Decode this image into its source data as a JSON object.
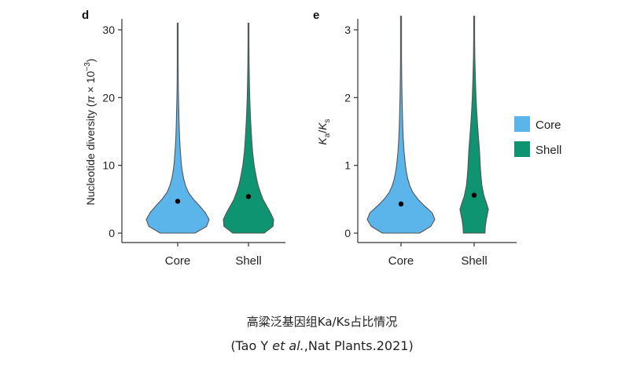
{
  "chart_data": [
    {
      "type": "violin",
      "panel_label": "d",
      "categories": [
        "Core",
        "Shell"
      ],
      "ylabel_main": "Nucleotide diversity (",
      "ylabel_pi": "π",
      "ylabel_times": " × 10",
      "ylabel_exp": "−3",
      "ylabel_close": ")",
      "ylim": [
        0,
        32
      ],
      "yticks": [
        0,
        10,
        20,
        30
      ],
      "series": [
        {
          "category": "Core",
          "color": "#5bb4ea",
          "mean": 4.7,
          "max": 31,
          "density": [
            [
              0,
              0.55
            ],
            [
              1,
              0.92
            ],
            [
              2,
              1.0
            ],
            [
              3,
              0.88
            ],
            [
              4,
              0.7
            ],
            [
              5,
              0.5
            ],
            [
              6,
              0.34
            ],
            [
              7,
              0.25
            ],
            [
              8,
              0.19
            ],
            [
              9,
              0.15
            ],
            [
              10,
              0.12
            ],
            [
              12,
              0.085
            ],
            [
              14,
              0.06
            ],
            [
              16,
              0.045
            ],
            [
              18,
              0.035
            ],
            [
              20,
              0.025
            ],
            [
              22,
              0.018
            ],
            [
              25,
              0.013
            ],
            [
              28,
              0.01
            ],
            [
              31,
              0.005
            ]
          ]
        },
        {
          "category": "Shell",
          "color": "#0e9470",
          "mean": 5.4,
          "max": 31,
          "density": [
            [
              0,
              0.5
            ],
            [
              1,
              0.78
            ],
            [
              2,
              0.8
            ],
            [
              3,
              0.7
            ],
            [
              4,
              0.58
            ],
            [
              5,
              0.46
            ],
            [
              6,
              0.38
            ],
            [
              7,
              0.31
            ],
            [
              8,
              0.26
            ],
            [
              9,
              0.22
            ],
            [
              10,
              0.18
            ],
            [
              12,
              0.13
            ],
            [
              14,
              0.1
            ],
            [
              16,
              0.075
            ],
            [
              18,
              0.055
            ],
            [
              20,
              0.04
            ],
            [
              22,
              0.03
            ],
            [
              25,
              0.02
            ],
            [
              28,
              0.012
            ],
            [
              31,
              0.005
            ]
          ]
        }
      ]
    },
    {
      "type": "violin",
      "panel_label": "e",
      "categories": [
        "Core",
        "Shell"
      ],
      "ylabel_k1": "K",
      "ylabel_sub1": "a",
      "ylabel_slash": "/",
      "ylabel_k2": "K",
      "ylabel_sub2": "s",
      "ylim": [
        0,
        3.2
      ],
      "yticks": [
        0,
        1,
        2,
        3
      ],
      "series": [
        {
          "category": "Core",
          "color": "#5bb4ea",
          "mean": 0.43,
          "max": 3.2,
          "density": [
            [
              0,
              0.55
            ],
            [
              0.1,
              0.88
            ],
            [
              0.2,
              1.0
            ],
            [
              0.3,
              0.92
            ],
            [
              0.4,
              0.7
            ],
            [
              0.5,
              0.5
            ],
            [
              0.6,
              0.35
            ],
            [
              0.7,
              0.26
            ],
            [
              0.8,
              0.2
            ],
            [
              0.9,
              0.16
            ],
            [
              1.0,
              0.13
            ],
            [
              1.2,
              0.09
            ],
            [
              1.4,
              0.065
            ],
            [
              1.6,
              0.05
            ],
            [
              1.8,
              0.04
            ],
            [
              2.0,
              0.03
            ],
            [
              2.3,
              0.02
            ],
            [
              2.6,
              0.014
            ],
            [
              2.9,
              0.01
            ],
            [
              3.2,
              0.005
            ]
          ]
        },
        {
          "category": "Shell",
          "color": "#0e9470",
          "mean": 0.56,
          "max": 3.2,
          "density": [
            [
              0,
              0.32
            ],
            [
              0.1,
              0.33
            ],
            [
              0.2,
              0.36
            ],
            [
              0.3,
              0.4
            ],
            [
              0.35,
              0.42
            ],
            [
              0.45,
              0.36
            ],
            [
              0.55,
              0.29
            ],
            [
              0.7,
              0.23
            ],
            [
              0.85,
              0.2
            ],
            [
              1.0,
              0.18
            ],
            [
              1.2,
              0.16
            ],
            [
              1.4,
              0.13
            ],
            [
              1.6,
              0.1
            ],
            [
              1.8,
              0.075
            ],
            [
              2.0,
              0.055
            ],
            [
              2.3,
              0.035
            ],
            [
              2.6,
              0.02
            ],
            [
              2.9,
              0.012
            ],
            [
              3.2,
              0.005
            ]
          ]
        }
      ]
    }
  ],
  "legend": {
    "position": "right",
    "entries": [
      {
        "label": "Core",
        "color": "#5bb4ea"
      },
      {
        "label": "Shell",
        "color": "#0e9470"
      }
    ]
  },
  "caption": {
    "line1": "高粱泛基因组Ka/Ks占比情况",
    "line2_open": "(Tao Y ",
    "line2_italic": "et al.",
    "line2_rest": ",Nat Plants.2021)"
  }
}
